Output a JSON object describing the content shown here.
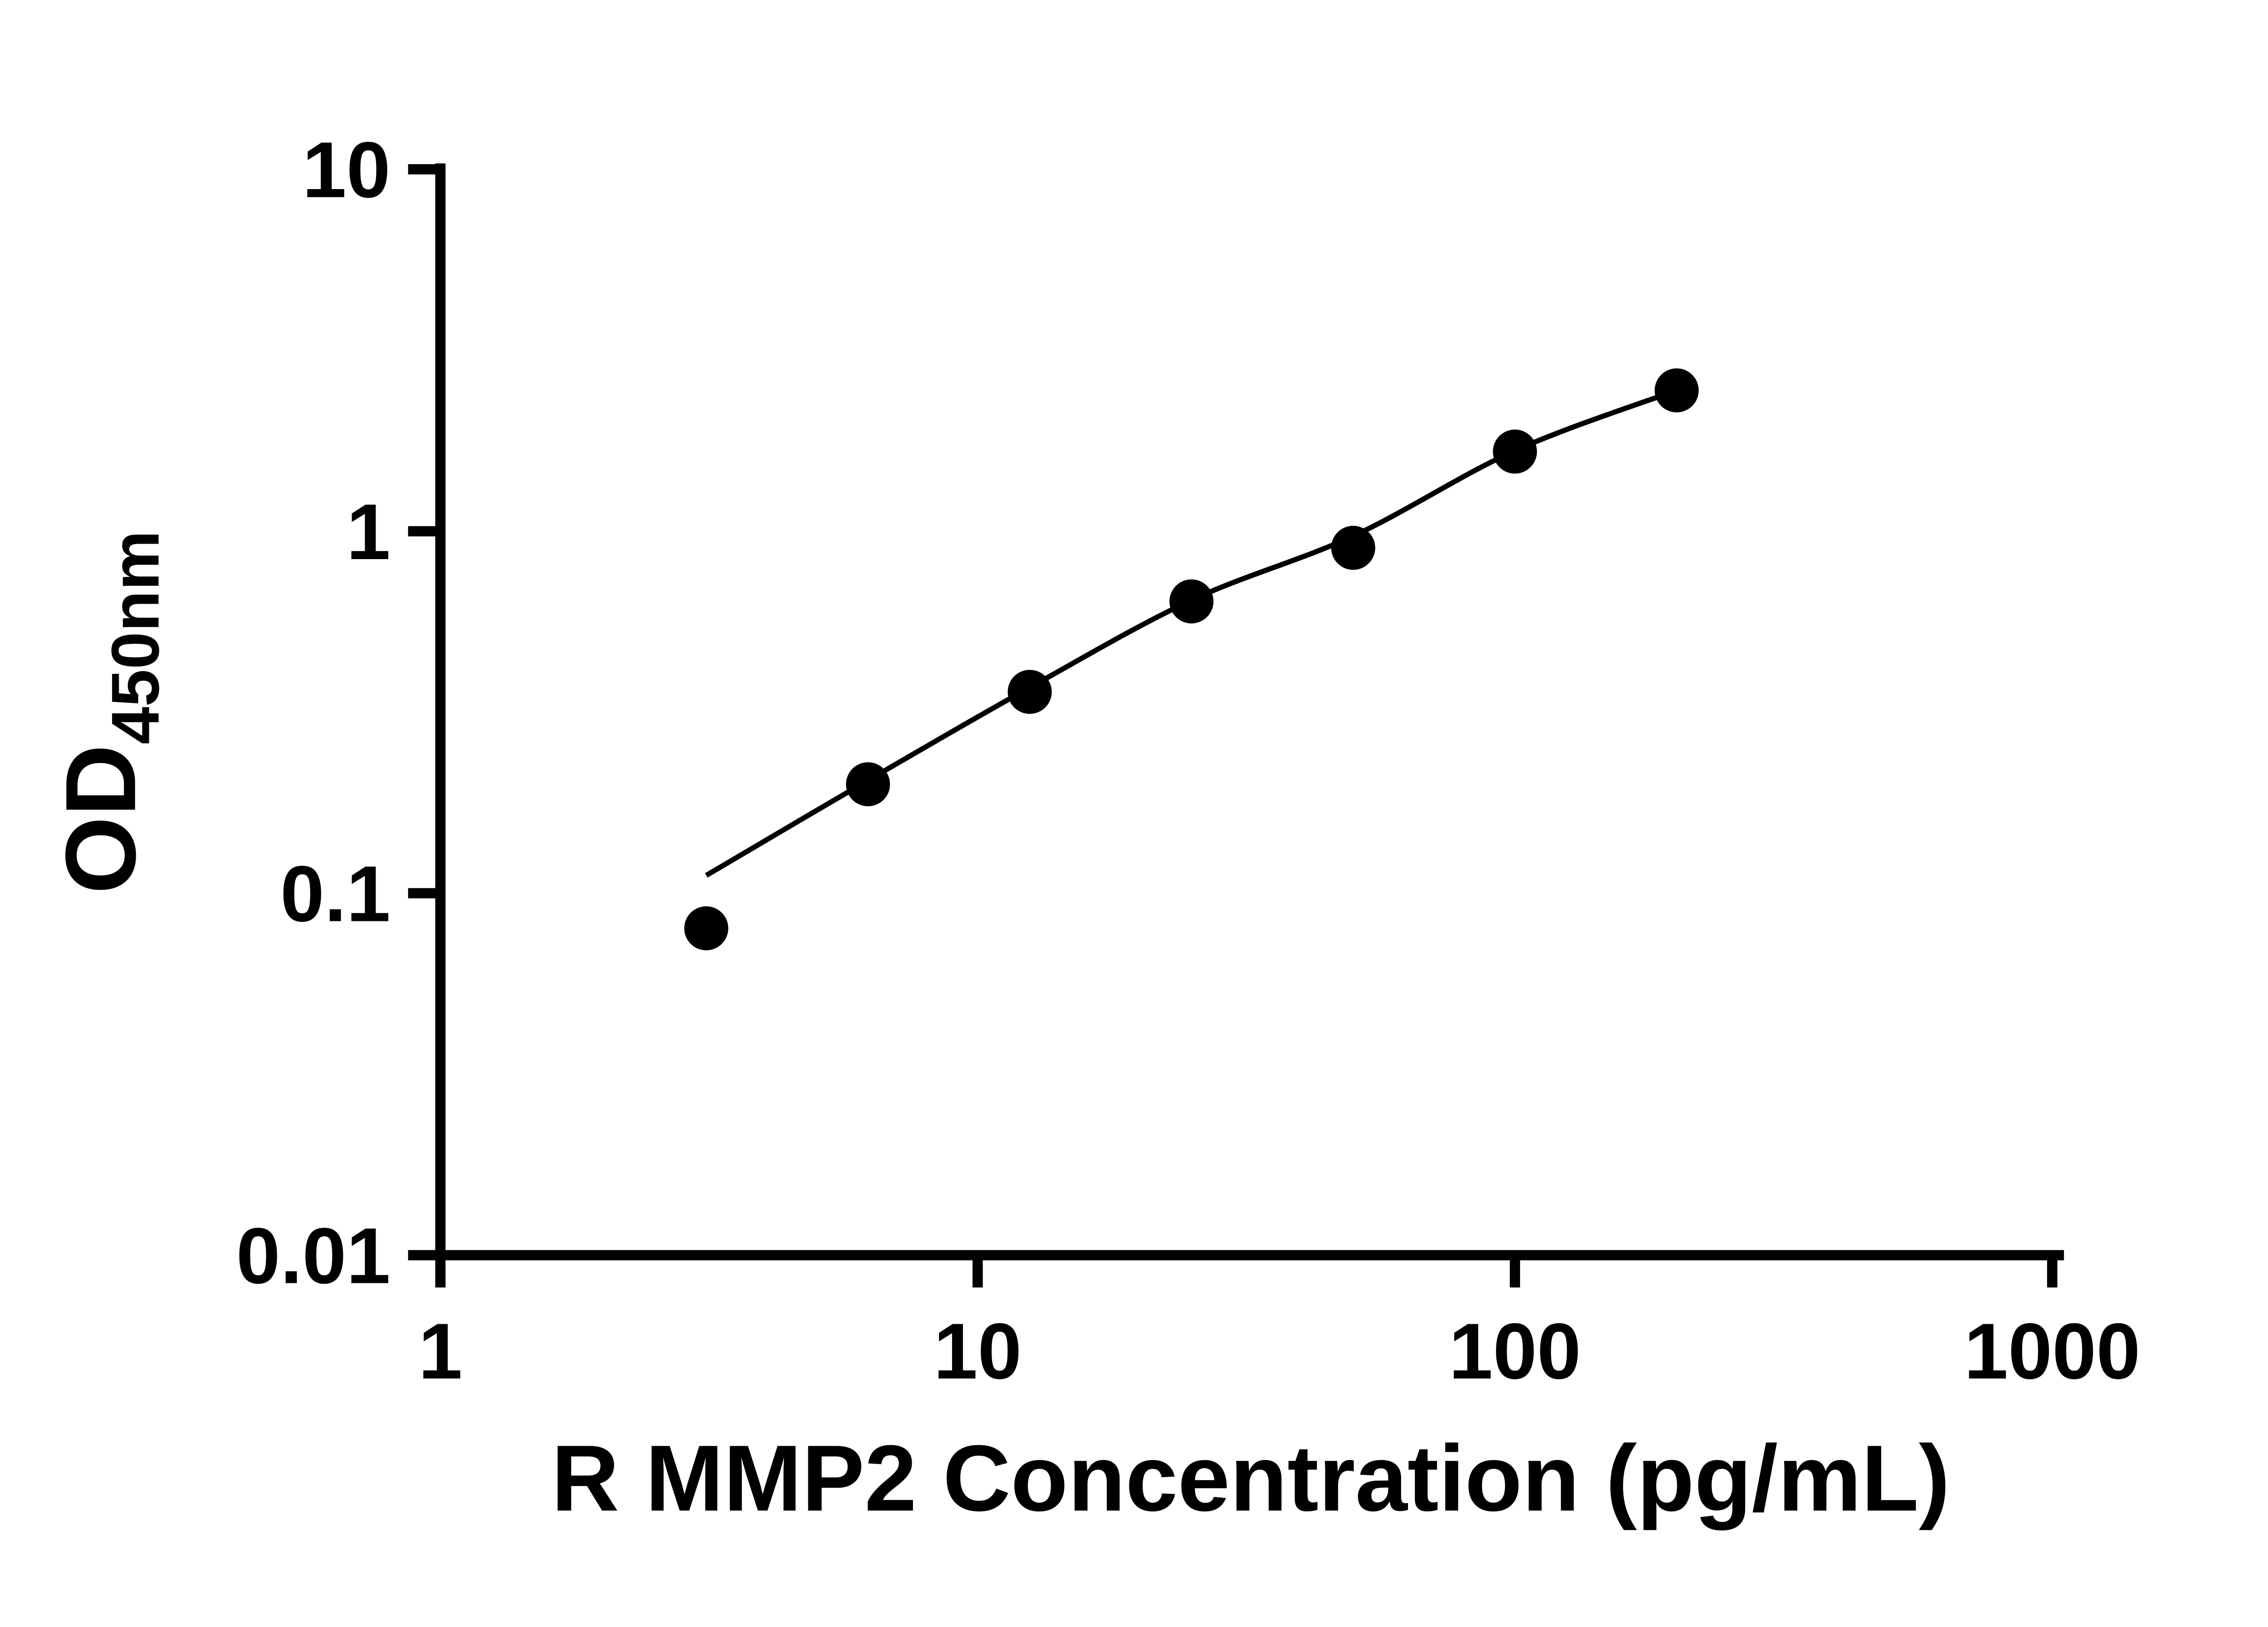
{
  "colors": {
    "background": "#ffffff",
    "axis": "#000000",
    "marker": "#000000",
    "trend": "#000000"
  },
  "chart_data": {
    "type": "scatter",
    "title": "",
    "xlabel": "R MMP2 Concentration (pg/mL)",
    "ylabel_main": "OD",
    "ylabel_sub": "450nm",
    "x_scale": "log",
    "y_scale": "log",
    "xlim": [
      1,
      1000
    ],
    "ylim": [
      0.01,
      10
    ],
    "x_ticks": [
      1,
      10,
      100,
      1000
    ],
    "x_tick_labels": [
      "1",
      "10",
      "100",
      "1000"
    ],
    "y_ticks": [
      0.01,
      0.1,
      1,
      10
    ],
    "y_tick_labels": [
      "0.01",
      "0.1",
      "1",
      "10"
    ],
    "grid": false,
    "legend": "none",
    "series": [
      {
        "marker": "filled-circle",
        "marker_radius": 15,
        "color": "#000000",
        "points": [
          {
            "x": 3.125,
            "y": 0.08
          },
          {
            "x": 6.25,
            "y": 0.2
          },
          {
            "x": 12.5,
            "y": 0.36
          },
          {
            "x": 25,
            "y": 0.64
          },
          {
            "x": 50,
            "y": 0.9
          },
          {
            "x": 100,
            "y": 1.66
          },
          {
            "x": 200,
            "y": 2.45
          }
        ]
      }
    ],
    "trend_line": {
      "color": "#000000",
      "points": [
        {
          "x": 3.125,
          "y": 0.112
        },
        {
          "x": 6.25,
          "y": 0.205
        },
        {
          "x": 12.5,
          "y": 0.37
        },
        {
          "x": 25,
          "y": 0.645
        },
        {
          "x": 50,
          "y": 0.97
        },
        {
          "x": 100,
          "y": 1.67
        },
        {
          "x": 200,
          "y": 2.45
        }
      ]
    }
  }
}
